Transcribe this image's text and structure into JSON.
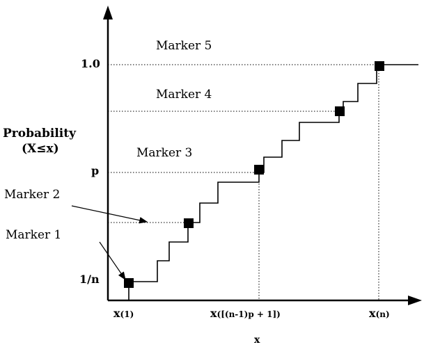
{
  "markers": [
    {
      "label": "Marker 1"
    },
    {
      "label": "Marker 2"
    },
    {
      "label": "Marker 3"
    },
    {
      "label": "Marker 4"
    },
    {
      "label": "Marker 5"
    }
  ],
  "y_axis": {
    "title_line1": "Probability",
    "title_line2_open": "(X",
    "title_line2_op": "≤",
    "title_line2_close": "x)",
    "ticks": [
      "1/n",
      "p",
      "1.0"
    ]
  },
  "x_axis": {
    "title": "x",
    "ticks": [
      {
        "base": "x",
        "sub": "(1)"
      },
      {
        "base": "x",
        "sub": "([(n-1)p + 1])"
      },
      {
        "base": "x",
        "sub": "(n)"
      }
    ]
  }
}
